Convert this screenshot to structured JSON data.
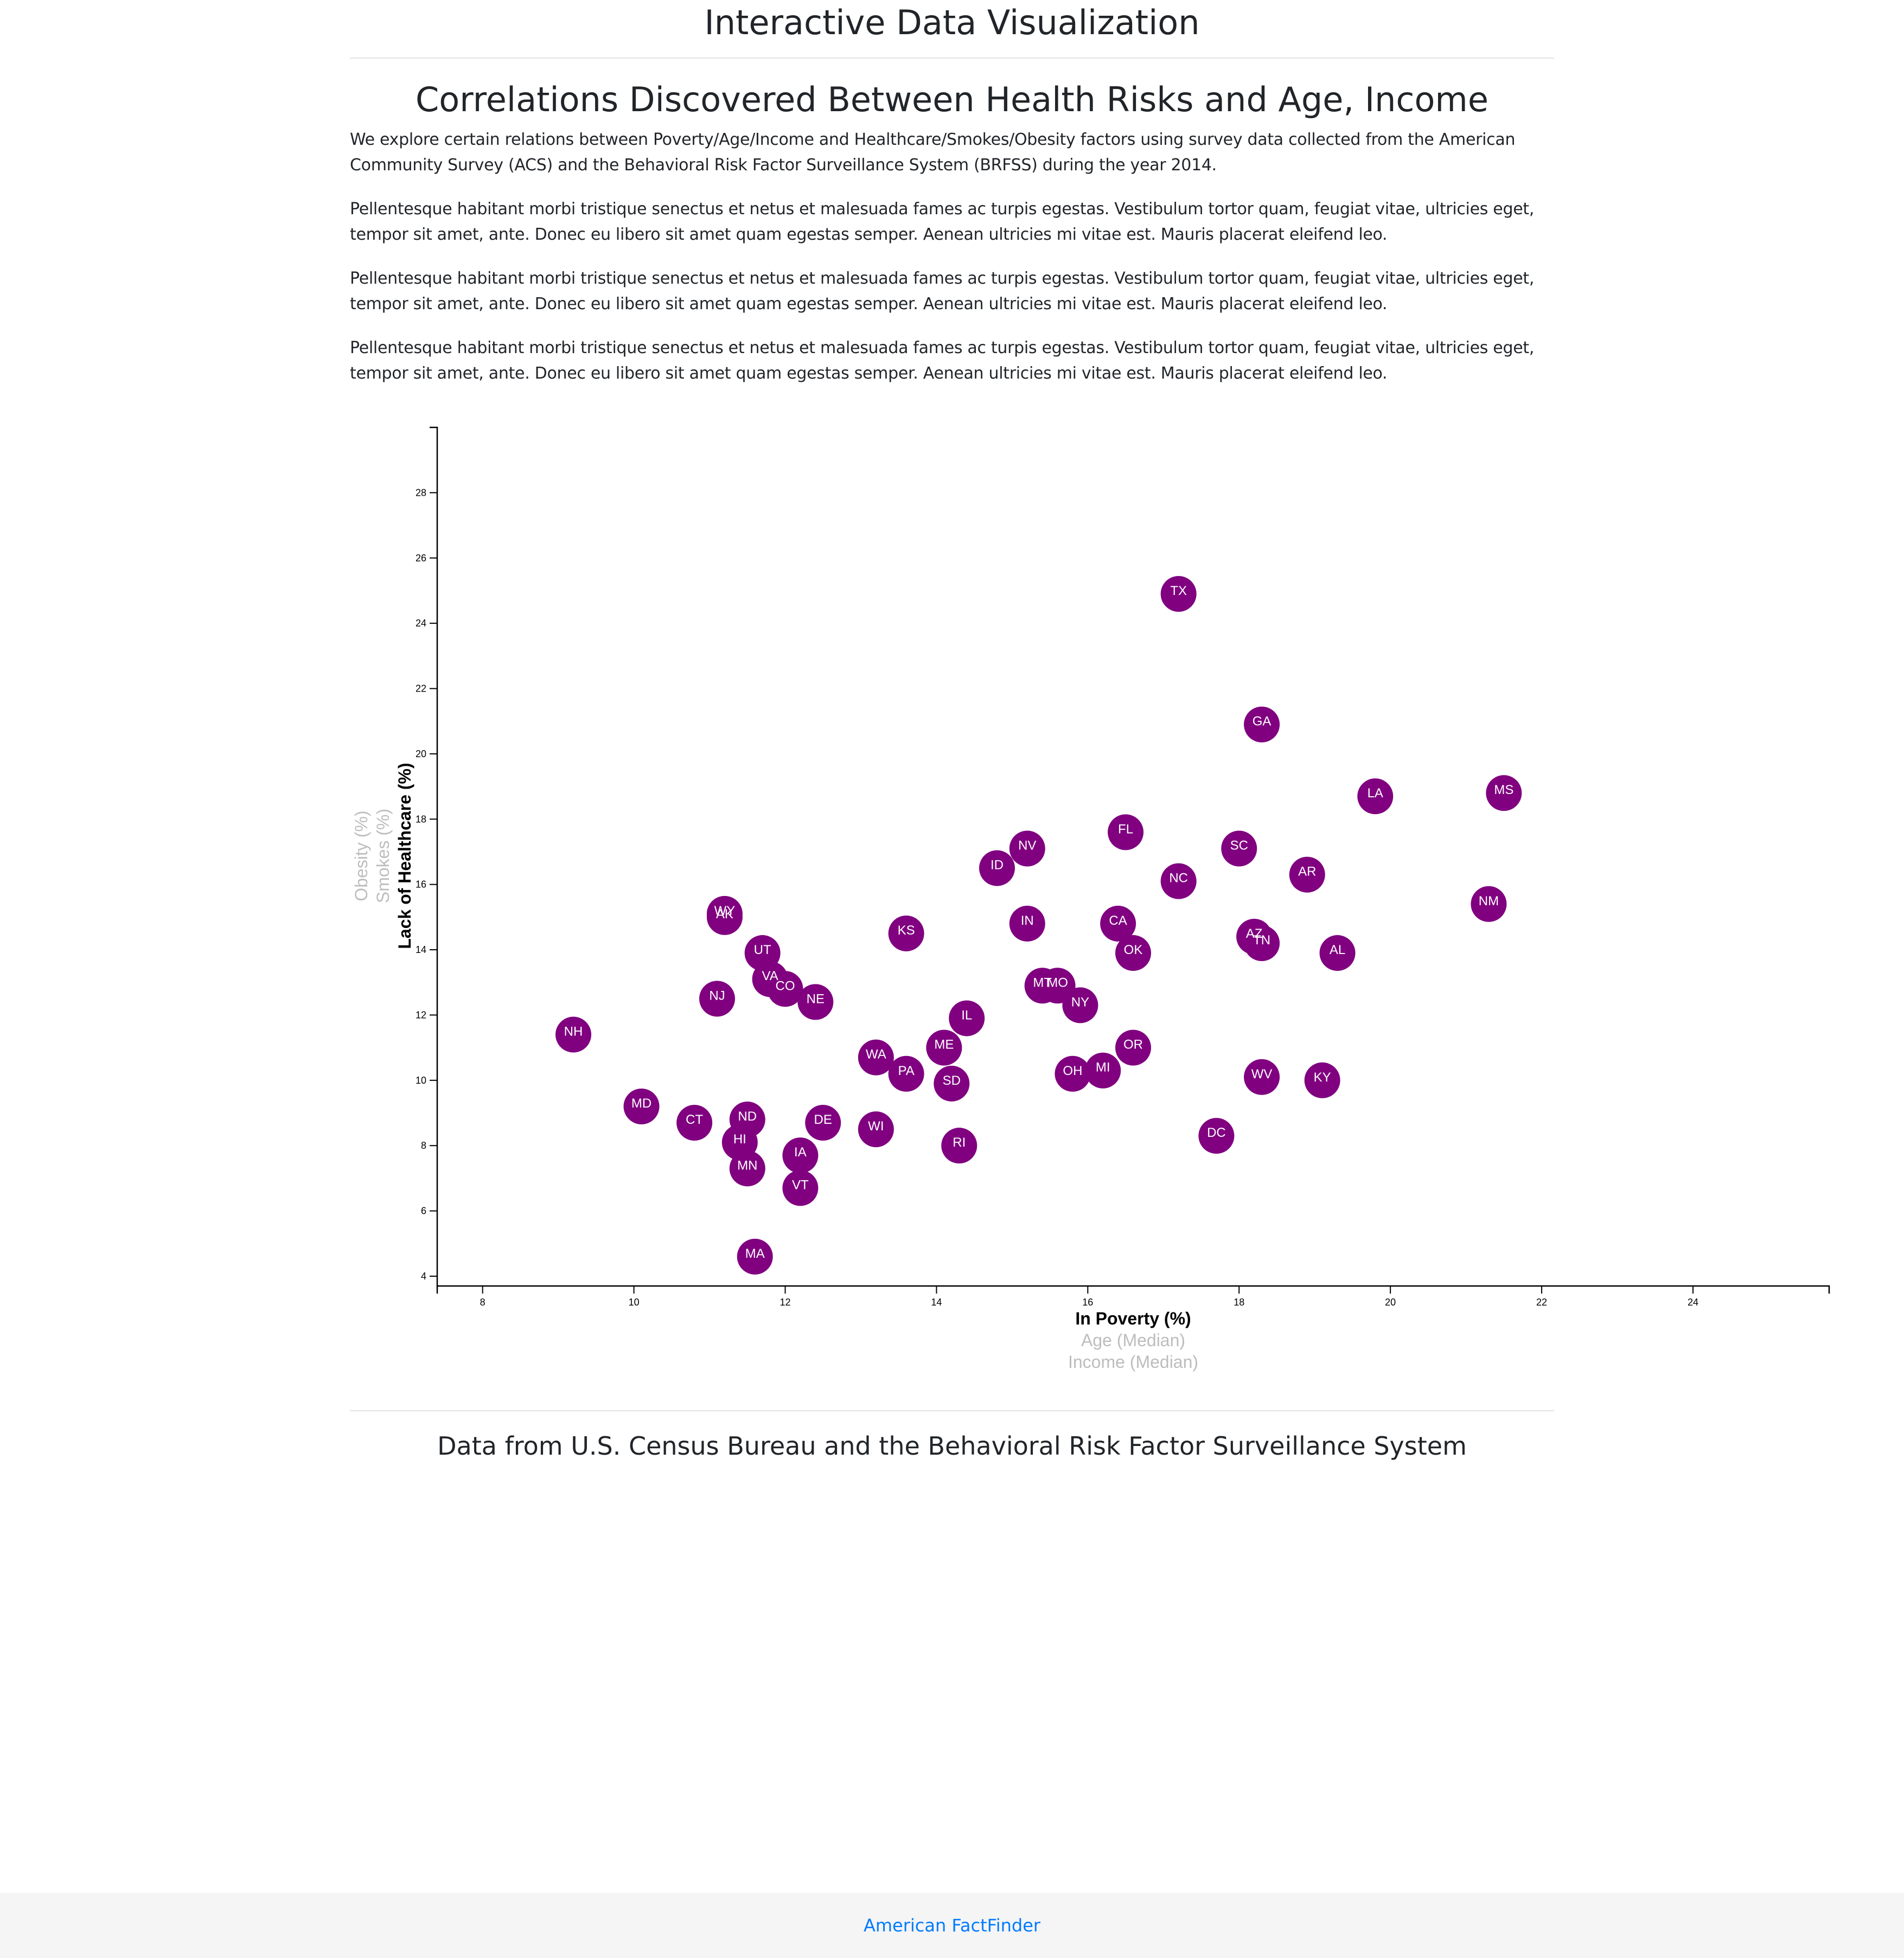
{
  "header": {
    "title": "Interactive Data Visualization"
  },
  "article": {
    "title": "Correlations Discovered Between Health Risks and Age, Income",
    "paragraphs": [
      "We explore certain relations between Poverty/Age/Income and Healthcare/Smokes/Obesity factors using survey data collected from the American Community Survey (ACS) and the Behavioral Risk Factor Surveillance System (BRFSS) during the year 2014.",
      "Pellentesque habitant morbi tristique senectus et netus et malesuada fames ac turpis egestas. Vestibulum tortor quam, feugiat vitae, ultricies eget, tempor sit amet, ante. Donec eu libero sit amet quam egestas semper. Aenean ultricies mi vitae est. Mauris placerat eleifend leo.",
      "Pellentesque habitant morbi tristique senectus et netus et malesuada fames ac turpis egestas. Vestibulum tortor quam, feugiat vitae, ultricies eget, tempor sit amet, ante. Donec eu libero sit amet quam egestas semper. Aenean ultricies mi vitae est. Mauris placerat eleifend leo.",
      "Pellentesque habitant morbi tristique senectus et netus et malesuada fames ac turpis egestas. Vestibulum tortor quam, feugiat vitae, ultricies eget, tempor sit amet, ante. Donec eu libero sit amet quam egestas semper. Aenean ultricies mi vitae est. Mauris placerat eleifend leo."
    ]
  },
  "chart_data": {
    "type": "scatter",
    "xlabel": "In Poverty (%)",
    "x_options": [
      "In Poverty (%)",
      "Age (Median)",
      "Income (Median)"
    ],
    "ylabel": "Lack of Healthcare (%)",
    "y_options": [
      "Lack of Healthcare (%)",
      "Smokes (%)",
      "Obesity (%)"
    ],
    "active_x": "In Poverty (%)",
    "active_y": "Lack of Healthcare (%)",
    "xlim": [
      7.4,
      25.8
    ],
    "ylim": [
      3.7,
      30
    ],
    "x_ticks": [
      8,
      10,
      12,
      14,
      16,
      18,
      20,
      22,
      24
    ],
    "y_ticks": [
      4,
      6,
      8,
      10,
      12,
      14,
      16,
      18,
      20,
      22,
      24,
      26,
      28
    ],
    "marker_color": "#800080",
    "points": [
      {
        "label": "TX",
        "x": 17.2,
        "y": 24.9
      },
      {
        "label": "GA",
        "x": 18.3,
        "y": 20.9
      },
      {
        "label": "LA",
        "x": 19.8,
        "y": 18.7
      },
      {
        "label": "MS",
        "x": 21.5,
        "y": 18.8
      },
      {
        "label": "FL",
        "x": 16.5,
        "y": 17.6
      },
      {
        "label": "SC",
        "x": 18.0,
        "y": 17.1
      },
      {
        "label": "NV",
        "x": 15.2,
        "y": 17.1
      },
      {
        "label": "ID",
        "x": 14.8,
        "y": 16.5
      },
      {
        "label": "AR",
        "x": 18.9,
        "y": 16.3
      },
      {
        "label": "NC",
        "x": 17.2,
        "y": 16.1
      },
      {
        "label": "NM",
        "x": 21.3,
        "y": 15.4
      },
      {
        "label": "WY",
        "x": 11.2,
        "y": 15.1
      },
      {
        "label": "AK",
        "x": 11.2,
        "y": 15.0
      },
      {
        "label": "IN",
        "x": 15.2,
        "y": 14.8
      },
      {
        "label": "CA",
        "x": 16.4,
        "y": 14.8
      },
      {
        "label": "KS",
        "x": 13.6,
        "y": 14.5
      },
      {
        "label": "AZ",
        "x": 18.2,
        "y": 14.4
      },
      {
        "label": "TN",
        "x": 18.3,
        "y": 14.2
      },
      {
        "label": "UT",
        "x": 11.7,
        "y": 13.9
      },
      {
        "label": "OK",
        "x": 16.6,
        "y": 13.9
      },
      {
        "label": "AL",
        "x": 19.3,
        "y": 13.9
      },
      {
        "label": "VA",
        "x": 11.8,
        "y": 13.1
      },
      {
        "label": "CO",
        "x": 12.0,
        "y": 12.8
      },
      {
        "label": "MT",
        "x": 15.4,
        "y": 12.9
      },
      {
        "label": "MO",
        "x": 15.6,
        "y": 12.9
      },
      {
        "label": "NJ",
        "x": 11.1,
        "y": 12.5
      },
      {
        "label": "NE",
        "x": 12.4,
        "y": 12.4
      },
      {
        "label": "NY",
        "x": 15.9,
        "y": 12.3
      },
      {
        "label": "IL",
        "x": 14.4,
        "y": 11.9
      },
      {
        "label": "NH",
        "x": 9.2,
        "y": 11.4
      },
      {
        "label": "ME",
        "x": 14.1,
        "y": 11.0
      },
      {
        "label": "OR",
        "x": 16.6,
        "y": 11.0
      },
      {
        "label": "WA",
        "x": 13.2,
        "y": 10.7
      },
      {
        "label": "PA",
        "x": 13.6,
        "y": 10.2
      },
      {
        "label": "OH",
        "x": 15.8,
        "y": 10.2
      },
      {
        "label": "MI",
        "x": 16.2,
        "y": 10.3
      },
      {
        "label": "WV",
        "x": 18.3,
        "y": 10.1
      },
      {
        "label": "KY",
        "x": 19.1,
        "y": 10.0
      },
      {
        "label": "SD",
        "x": 14.2,
        "y": 9.9
      },
      {
        "label": "MD",
        "x": 10.1,
        "y": 9.2
      },
      {
        "label": "ND",
        "x": 11.5,
        "y": 8.8
      },
      {
        "label": "CT",
        "x": 10.8,
        "y": 8.7
      },
      {
        "label": "DE",
        "x": 12.5,
        "y": 8.7
      },
      {
        "label": "WI",
        "x": 13.2,
        "y": 8.5
      },
      {
        "label": "DC",
        "x": 17.7,
        "y": 8.3
      },
      {
        "label": "HI",
        "x": 11.4,
        "y": 8.1
      },
      {
        "label": "RI",
        "x": 14.3,
        "y": 8.0
      },
      {
        "label": "IA",
        "x": 12.2,
        "y": 7.7
      },
      {
        "label": "MN",
        "x": 11.5,
        "y": 7.3
      },
      {
        "label": "VT",
        "x": 12.2,
        "y": 6.7
      },
      {
        "label": "MA",
        "x": 11.6,
        "y": 4.6
      }
    ]
  },
  "credit": {
    "text": "Data from U.S. Census Bureau and the Behavioral Risk Factor Surveillance System"
  },
  "footer": {
    "link_text": "American FactFinder"
  }
}
